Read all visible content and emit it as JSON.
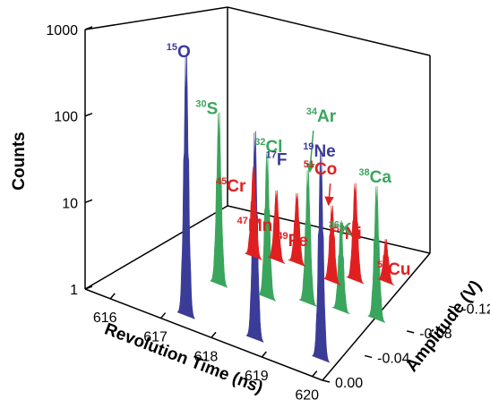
{
  "chart_data": {
    "type": "3d-ridgeline",
    "title": "",
    "x_axis": {
      "label": "Revolution Time (ns)",
      "ticks": [
        616,
        617,
        618,
        619,
        620
      ],
      "range": [
        615.5,
        620.2
      ]
    },
    "y_axis": {
      "label": "Amplitude (V)",
      "ticks": [
        "0.00",
        "-0.04",
        "-0.08",
        "-0.12"
      ],
      "range": [
        -0.135,
        0.0
      ]
    },
    "z_axis": {
      "label": "Counts",
      "scale": "log",
      "ticks": [
        "1",
        "10",
        "100",
        "1000"
      ],
      "range": [
        1,
        1000
      ]
    },
    "colors": {
      "red": "#e02020",
      "green": "#3aa55c",
      "blue": "#3b3b98",
      "axis": "#000000"
    },
    "peaks": [
      {
        "id": "o15",
        "mass": "15",
        "symbol": "O",
        "time": 617.25,
        "amplitude": -0.012,
        "counts": 800,
        "color": "blue"
      },
      {
        "id": "s30",
        "mass": "30",
        "symbol": "S",
        "time": 617.0,
        "amplitude": -0.055,
        "counts": 80,
        "color": "green"
      },
      {
        "id": "cr45",
        "mass": "45",
        "symbol": "Cr",
        "time": 616.85,
        "amplitude": -0.095,
        "counts": 10,
        "color": "red"
      },
      {
        "id": "mn47",
        "mass": "47",
        "symbol": "Mn",
        "time": 617.2,
        "amplitude": -0.1,
        "counts": 6,
        "color": "red"
      },
      {
        "id": "fe49",
        "mass": "49",
        "symbol": "Fe",
        "time": 617.5,
        "amplitude": -0.105,
        "counts": 6,
        "color": "red"
      },
      {
        "id": "cl32",
        "mass": "32",
        "symbol": "Cl",
        "time": 617.85,
        "amplitude": -0.06,
        "counts": 40,
        "color": "green"
      },
      {
        "id": "f17",
        "mass": "17",
        "symbol": "F",
        "time": 618.55,
        "amplitude": -0.015,
        "counts": 200,
        "color": "blue"
      },
      {
        "id": "co51",
        "mass": "51",
        "symbol": "Co",
        "time": 618.3,
        "amplitude": -0.1,
        "counts": 7,
        "color": "red"
      },
      {
        "id": "ar34",
        "mass": "34",
        "symbol": "Ar",
        "time": 618.45,
        "amplitude": -0.07,
        "counts": 30,
        "color": "green"
      },
      {
        "id": "ni53",
        "mass": "53",
        "symbol": "Ni",
        "time": 618.55,
        "amplitude": -0.11,
        "counts": 12,
        "color": "red"
      },
      {
        "id": "cu55",
        "mass": "55",
        "symbol": "Cu",
        "time": 618.95,
        "amplitude": -0.12,
        "counts": 3,
        "color": "red"
      },
      {
        "id": "k36",
        "mass": "36",
        "symbol": "K",
        "time": 619.0,
        "amplitude": -0.075,
        "counts": 10,
        "color": "green"
      },
      {
        "id": "ca38",
        "mass": "38",
        "symbol": "Ca",
        "time": 619.6,
        "amplitude": -0.08,
        "counts": 30,
        "color": "green"
      },
      {
        "id": "ne19",
        "mass": "19",
        "symbol": "Ne",
        "time": 619.75,
        "amplitude": -0.02,
        "counts": 200,
        "color": "blue"
      }
    ],
    "arrows": [
      {
        "from": "co51",
        "to": "co51",
        "color": "red"
      },
      {
        "from": "ar34",
        "to": "ar34",
        "color": "green"
      }
    ]
  }
}
